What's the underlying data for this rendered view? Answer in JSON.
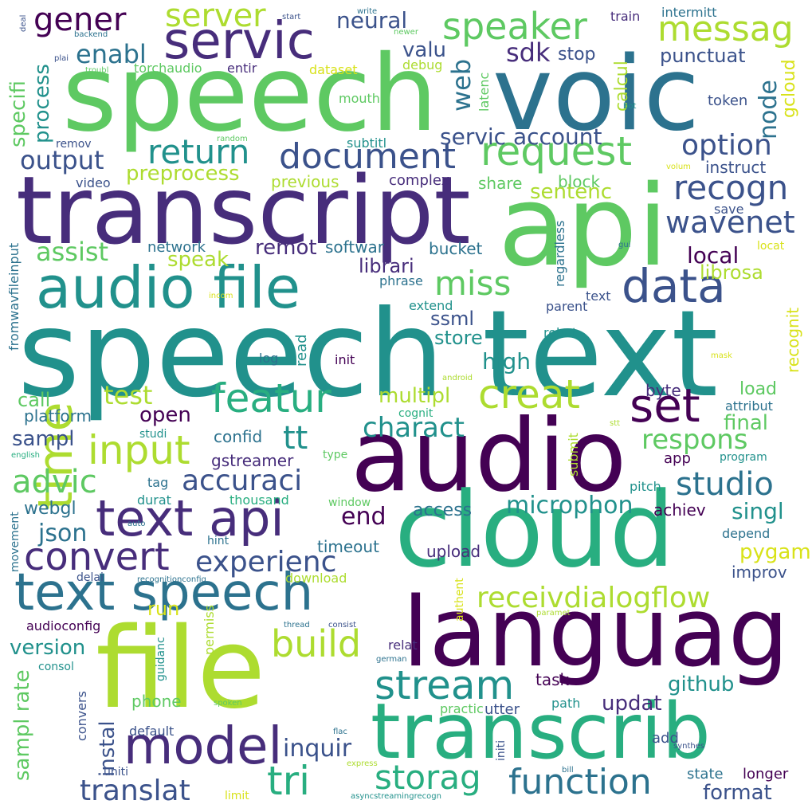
{
  "words": {
    "speech_text": "speech text",
    "speech": "speech",
    "voic": "voic",
    "transcript": "transcript",
    "api": "api",
    "audio": "audio",
    "cloud": "cloud",
    "file": "file",
    "languag": "languag",
    "transcrib": "transcrib",
    "audio_file": "audio file",
    "text_api": "text api",
    "text_speech": "text speech",
    "model": "model",
    "servic": "servic",
    "request": "request",
    "data": "data",
    "set": "set",
    "creat": "creat",
    "featur": "featur",
    "input": "input",
    "convert": "convert",
    "stream": "stream",
    "time": "time",
    "document": "document",
    "speaker": "speaker",
    "messag": "messag",
    "recogn": "recogn",
    "return": "return",
    "miss": "miss",
    "wavenet": "wavenet",
    "option": "option",
    "studio": "studio",
    "function": "function",
    "storag": "storag",
    "tri": "tri",
    "build": "build",
    "receivdialogflow": "receivdialogflow",
    "experienc": "experienc",
    "accuraci": "accuraci",
    "translat": "translat",
    "inquir": "inquir",
    "advic": "advic",
    "tt": "tt",
    "gener": "gener",
    "server": "server",
    "respons": "respons",
    "charact": "charact",
    "microphon": "microphon",
    "output": "output",
    "test": "test",
    "assist": "assist",
    "json": "json",
    "enabl": "enabl",
    "sdk": "sdk",
    "web": "web",
    "node": "node",
    "valu": "valu",
    "neural": "neural",
    "servic_account": "servic account",
    "preprocess": "preprocess",
    "sentenc": "sentenc",
    "speak": "speak",
    "remot": "remot",
    "librari": "librari",
    "local": "local",
    "librosa": "librosa",
    "ssml": "ssml",
    "store": "store",
    "high": "high",
    "multipl": "multipl",
    "end": "end",
    "open": "open",
    "final": "final",
    "load": "load",
    "singl": "singl",
    "pygam": "pygam",
    "sampl_rate": "sampl rate",
    "sampl": "sampl",
    "updat": "updat",
    "github": "github",
    "format": "format",
    "version": "version",
    "webgl": "webgl",
    "call": "call",
    "process": "process",
    "specifi": "specifi",
    "punctuat": "punctuat",
    "stop": "stop",
    "calcul": "calcul",
    "gcloud": "gcloud",
    "instal": "instal",
    "run": "run",
    "access": "access",
    "upload": "upload",
    "timeout": "timeout",
    "gstreamer": "gstreamer",
    "platform": "platform",
    "confid": "confid",
    "byte": "byte",
    "app": "app",
    "achiev": "achiev",
    "state": "state",
    "longer": "longer",
    "add": "add",
    "task": "task",
    "phone": "phone",
    "improv": "improv",
    "recognit": "recognit",
    "instruct": "instruct",
    "token": "token",
    "block": "block",
    "share": "share",
    "complex": "complex",
    "bucket": "bucket",
    "softwar": "softwar",
    "network": "network",
    "previous": "previous",
    "subtitl": "subtitl",
    "latenc": "latenc",
    "mouth": "mouth",
    "debug": "debug",
    "dataset": "dataset",
    "torchaudio": "torchaudio",
    "entir": "entir",
    "intermitt": "intermitt",
    "train": "train",
    "write": "write",
    "start": "start",
    "newer": "newer",
    "deal": "deal",
    "plai": "plai",
    "backend": "backend",
    "troubl": "troubl",
    "remov": "remov",
    "random": "random",
    "video": "video",
    "fromwavfileinput": "fromwavfileinput",
    "regardless": "regardless",
    "phrase": "phrase",
    "extend": "extend",
    "parent": "parent",
    "text": "text",
    "robot": "robot",
    "save": "save",
    "locat": "locat",
    "gui": "gui",
    "bot": "bot",
    "volum": "volum",
    "incom": "incom",
    "read": "read",
    "log": "log",
    "init": "init",
    "android": "android",
    "mask": "mask",
    "cognit": "cognit",
    "submit": "submit",
    "attribut": "attribut",
    "stt": "stt",
    "program": "program",
    "studi": "studi",
    "english": "english",
    "type": "type",
    "tag": "tag",
    "durat": "durat",
    "thousand": "thousand",
    "window": "window",
    "pitch": "pitch",
    "depend": "depend",
    "movement": "movement",
    "auto": "auto",
    "hint": "hint",
    "delai": "delai",
    "recognitionconfig": "recognitionconfig",
    "download": "download",
    "authent": "authent",
    "audioconfig": "audioconfig",
    "guidanc": "guidanc",
    "permiss": "permiss",
    "thread": "thread",
    "consist": "consist",
    "paramet": "paramet",
    "relat": "relat",
    "consol": "consol",
    "german": "german",
    "convers": "convers",
    "spoken": "spoken",
    "practic": "practic",
    "path": "path",
    "utter": "utter",
    "default": "default",
    "flac": "flac",
    "initi": "initi",
    "synthes": "synthes",
    "express": "express",
    "bill": "bill",
    "uniti": "uniti",
    "limit": "limit",
    "asyncstreamingrecogn": "asyncstreamingrecogn"
  },
  "palette": [
    "#440154",
    "#472d7b",
    "#3b528b",
    "#2c728e",
    "#21918c",
    "#28ae80",
    "#5ec962",
    "#addc30",
    "#d8e219"
  ]
}
